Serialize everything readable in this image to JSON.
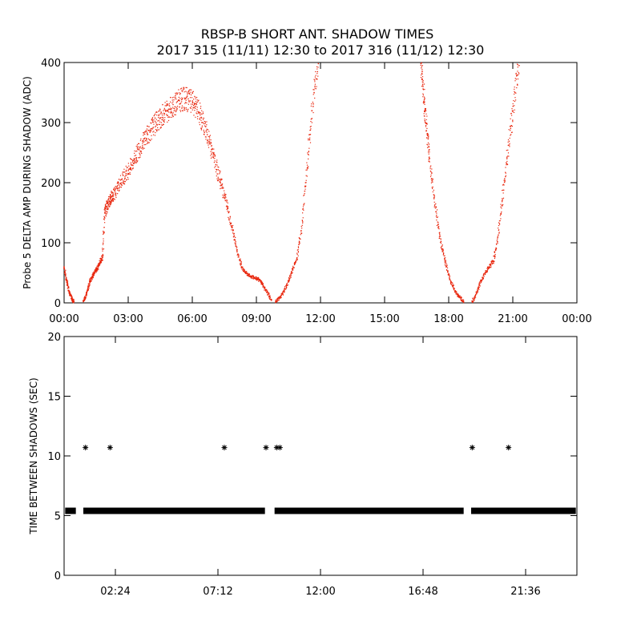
{
  "title_line1": "RBSP-B SHORT ANT. SHADOW TIMES",
  "title_line2": "2017 315 (11/11) 12:30 to 2017 316 (11/12) 12:30",
  "chart_data": [
    {
      "type": "scatter",
      "ylabel": "Probe 5 DELTA AMP DURING SHADOW (ADC)",
      "xlim": [
        0,
        24
      ],
      "ylim": [
        0,
        400
      ],
      "x_ticks": [
        0,
        3,
        6,
        9,
        12,
        15,
        18,
        21,
        24
      ],
      "x_tick_labels": [
        "00:00",
        "03:00",
        "06:00",
        "09:00",
        "12:00",
        "15:00",
        "18:00",
        "21:00",
        "00:00"
      ],
      "y_ticks": [
        0,
        100,
        200,
        300,
        400
      ],
      "y_tick_labels": [
        "0",
        "100",
        "200",
        "300",
        "400"
      ],
      "color": "#e8250c",
      "series": [
        {
          "x": [
            0.0,
            0.1,
            0.2,
            0.3,
            0.4,
            0.45
          ],
          "y": [
            60,
            40,
            25,
            12,
            5,
            2
          ]
        },
        {
          "x": [
            0.9,
            1.0,
            1.1,
            1.2,
            1.3,
            1.4,
            1.5,
            1.6,
            1.7,
            1.8,
            1.9,
            2.0,
            2.1,
            2.2,
            2.3,
            2.5,
            2.7,
            2.9,
            3.1,
            3.3,
            3.5,
            3.7,
            3.9,
            4.1,
            4.3,
            4.5,
            4.7,
            4.9,
            5.1,
            5.3,
            5.5,
            5.7,
            5.9,
            6.1,
            6.3,
            6.5,
            6.7,
            6.9,
            7.1,
            7.3,
            7.5,
            7.7,
            7.9,
            8.1,
            8.3,
            8.5,
            8.7,
            8.9,
            9.1,
            9.3,
            9.5,
            9.7
          ],
          "y": [
            2,
            10,
            20,
            35,
            42,
            50,
            55,
            60,
            70,
            75,
            150,
            160,
            168,
            175,
            180,
            190,
            205,
            215,
            225,
            240,
            255,
            270,
            280,
            290,
            300,
            308,
            315,
            322,
            330,
            335,
            338,
            340,
            336,
            330,
            318,
            300,
            280,
            255,
            230,
            205,
            180,
            150,
            120,
            85,
            60,
            50,
            45,
            42,
            40,
            30,
            18,
            5
          ]
        },
        {
          "x": [
            9.9,
            10.1,
            10.3,
            10.5,
            10.7,
            10.9,
            11.1,
            11.3,
            11.5,
            11.7,
            11.9
          ],
          "y": [
            2,
            8,
            20,
            35,
            55,
            75,
            120,
            200,
            280,
            350,
            398
          ]
        },
        {
          "x": [
            16.7,
            16.8,
            16.9,
            17.0,
            17.1,
            17.3,
            17.5,
            17.7,
            17.9,
            18.1,
            18.3,
            18.5,
            18.7
          ],
          "y": [
            398,
            360,
            320,
            280,
            240,
            180,
            130,
            90,
            60,
            35,
            20,
            10,
            2
          ]
        },
        {
          "x": [
            19.1,
            19.3,
            19.5,
            19.7,
            19.9,
            20.1,
            20.3,
            20.5,
            20.7,
            20.9,
            21.1,
            21.3
          ],
          "y": [
            2,
            15,
            35,
            50,
            60,
            70,
            110,
            170,
            230,
            290,
            350,
            395
          ]
        }
      ]
    },
    {
      "type": "scatter",
      "ylabel": "TIME BETWEEN SHADOWS (SEC)",
      "xlim": [
        0,
        24
      ],
      "ylim": [
        0,
        20
      ],
      "x_ticks": [
        2.4,
        7.2,
        12,
        16.8,
        21.6
      ],
      "x_tick_labels": [
        "02:24",
        "07:12",
        "12:00",
        "16:48",
        "21:36"
      ],
      "y_ticks": [
        0,
        5,
        10,
        15,
        20
      ],
      "y_tick_labels": [
        "0",
        "5",
        "10",
        "15",
        "20"
      ],
      "color": "#000000",
      "marker": "asterisk",
      "baseline": {
        "y": 5.4,
        "segments": [
          [
            0.05,
            0.55
          ],
          [
            0.9,
            9.4
          ],
          [
            9.85,
            18.7
          ],
          [
            19.05,
            23.95
          ]
        ]
      },
      "points": [
        {
          "x": 1.0,
          "y": 10.7
        },
        {
          "x": 2.15,
          "y": 10.7
        },
        {
          "x": 7.5,
          "y": 10.7
        },
        {
          "x": 9.45,
          "y": 10.7
        },
        {
          "x": 9.95,
          "y": 10.7
        },
        {
          "x": 10.1,
          "y": 10.7
        },
        {
          "x": 19.1,
          "y": 10.7
        },
        {
          "x": 20.8,
          "y": 10.7
        }
      ]
    }
  ]
}
